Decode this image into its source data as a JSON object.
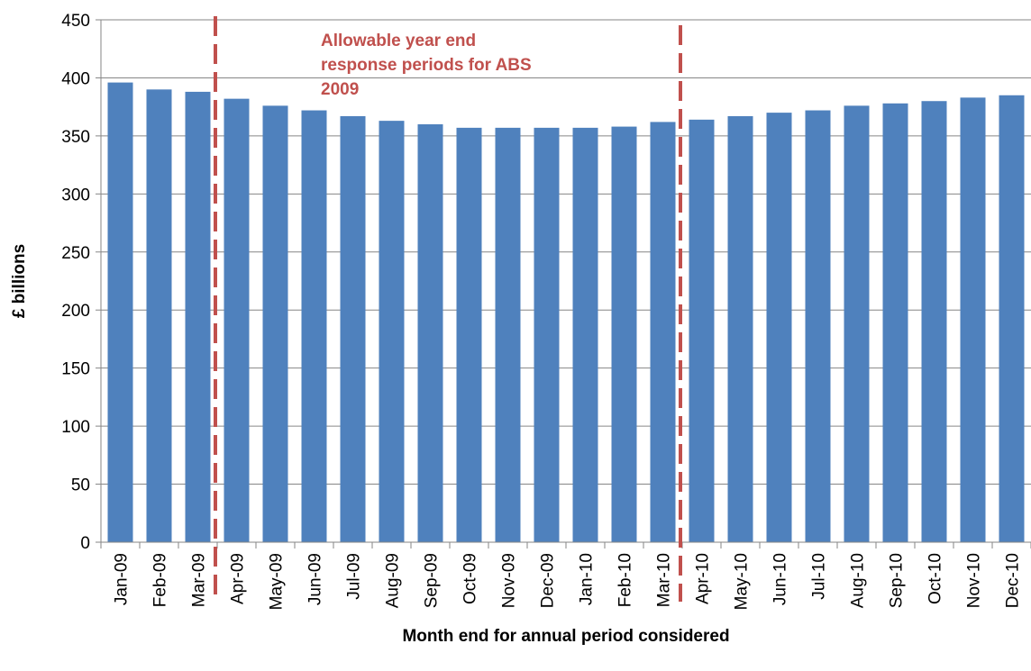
{
  "chart_data": {
    "type": "bar",
    "title": "",
    "xlabel": "Month end for annual period considered",
    "ylabel": "£ billions",
    "ylim": [
      0,
      450
    ],
    "yticks": [
      0,
      50,
      100,
      150,
      200,
      250,
      300,
      350,
      400,
      450
    ],
    "grid": true,
    "legend": "none",
    "categories": [
      "Jan-09",
      "Feb-09",
      "Mar-09",
      "Apr-09",
      "May-09",
      "Jun-09",
      "Jul-09",
      "Aug-09",
      "Sep-09",
      "Oct-09",
      "Nov-09",
      "Dec-09",
      "Jan-10",
      "Feb-10",
      "Mar-10",
      "Apr-10",
      "May-10",
      "Jun-10",
      "Jul-10",
      "Aug-10",
      "Sep-10",
      "Oct-10",
      "Nov-10",
      "Dec-10"
    ],
    "series": [
      {
        "values": [
          396,
          390,
          388,
          382,
          376,
          372,
          367,
          363,
          360,
          357,
          357,
          357,
          357,
          358,
          362,
          364,
          367,
          370,
          372,
          376,
          378,
          380,
          383,
          385
        ]
      }
    ],
    "colors": {
      "bar": "#4f81bd",
      "annotation": "#c0504d",
      "grid": "#868686"
    },
    "annotations": {
      "lines": [
        "Allowable year end",
        "response periods for ABS",
        "2009"
      ],
      "range_start": "Mar-09",
      "range_end": "Mar-10"
    }
  }
}
